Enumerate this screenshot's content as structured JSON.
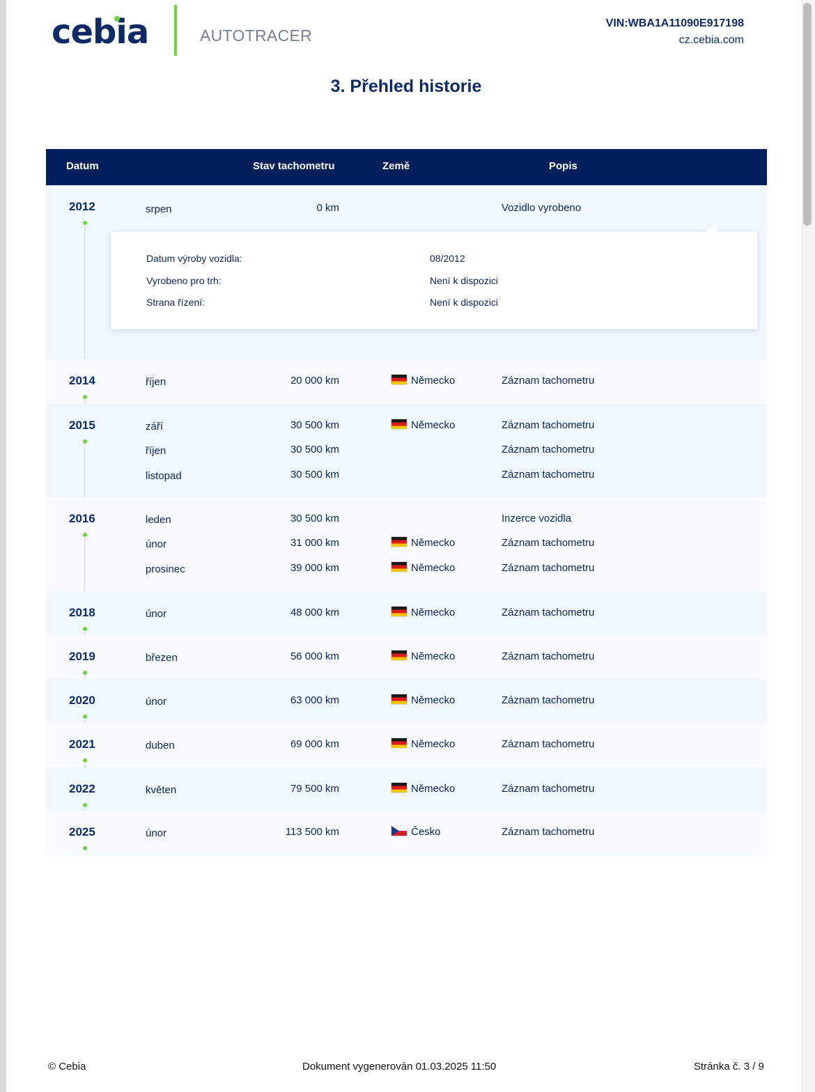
{
  "header": {
    "logo": "cebia",
    "product": "AUTOTRACER",
    "vin": "VIN:WBA1A11090E917198",
    "site": "cz.cebia.com"
  },
  "title": "3. Přehled historie",
  "table": {
    "columns": [
      "Datum",
      "Stav tachometru",
      "Země",
      "Popis"
    ],
    "groups": [
      {
        "year": "2012",
        "rows": [
          {
            "month": "srpen",
            "km": "0 km",
            "country": "",
            "flag": "",
            "desc": "Vozidlo vyrobeno"
          }
        ],
        "details": [
          {
            "label": "Datum výroby vozidla:",
            "value": "08/2012"
          },
          {
            "label": "Vyrobeno pro trh:",
            "value": "Není k dispozici"
          },
          {
            "label": "Strana řízení:",
            "value": "Není k dispozici"
          }
        ]
      },
      {
        "year": "2014",
        "rows": [
          {
            "month": "říjen",
            "km": "20 000 km",
            "country": "Německo",
            "flag": "de",
            "desc": "Záznam tachometru"
          }
        ]
      },
      {
        "year": "2015",
        "rows": [
          {
            "month": "září",
            "km": "30 500 km",
            "country": "Německo",
            "flag": "de",
            "desc": "Záznam tachometru"
          },
          {
            "month": "říjen",
            "km": "30 500 km",
            "country": "",
            "flag": "",
            "desc": "Záznam tachometru"
          },
          {
            "month": "listopad",
            "km": "30 500 km",
            "country": "",
            "flag": "",
            "desc": "Záznam tachometru"
          }
        ]
      },
      {
        "year": "2016",
        "rows": [
          {
            "month": "leden",
            "km": "30 500 km",
            "country": "",
            "flag": "",
            "desc": "Inzerce vozidla"
          },
          {
            "month": "únor",
            "km": "31 000 km",
            "country": "Německo",
            "flag": "de",
            "desc": "Záznam tachometru"
          },
          {
            "month": "prosinec",
            "km": "39 000 km",
            "country": "Německo",
            "flag": "de",
            "desc": "Záznam tachometru"
          }
        ]
      },
      {
        "year": "2018",
        "rows": [
          {
            "month": "únor",
            "km": "48 000 km",
            "country": "Německo",
            "flag": "de",
            "desc": "Záznam tachometru"
          }
        ]
      },
      {
        "year": "2019",
        "rows": [
          {
            "month": "březen",
            "km": "56 000 km",
            "country": "Německo",
            "flag": "de",
            "desc": "Záznam tachometru"
          }
        ]
      },
      {
        "year": "2020",
        "rows": [
          {
            "month": "únor",
            "km": "63 000 km",
            "country": "Německo",
            "flag": "de",
            "desc": "Záznam tachometru"
          }
        ]
      },
      {
        "year": "2021",
        "rows": [
          {
            "month": "duben",
            "km": "69 000 km",
            "country": "Německo",
            "flag": "de",
            "desc": "Záznam tachometru"
          }
        ]
      },
      {
        "year": "2022",
        "rows": [
          {
            "month": "květen",
            "km": "79 500 km",
            "country": "Německo",
            "flag": "de",
            "desc": "Záznam tachometru"
          }
        ]
      },
      {
        "year": "2025",
        "rows": [
          {
            "month": "únor",
            "km": "113 500 km",
            "country": "Česko",
            "flag": "cz",
            "desc": "Záznam tachometru"
          }
        ]
      }
    ]
  },
  "footer": {
    "copyright": "© Cebia",
    "generated": "Dokument vygenerován 01.03.2025 11:50",
    "page": "Stránka č. 3 / 9"
  },
  "colors": {
    "navy": "#02205a",
    "accent": "#6fd33d"
  }
}
